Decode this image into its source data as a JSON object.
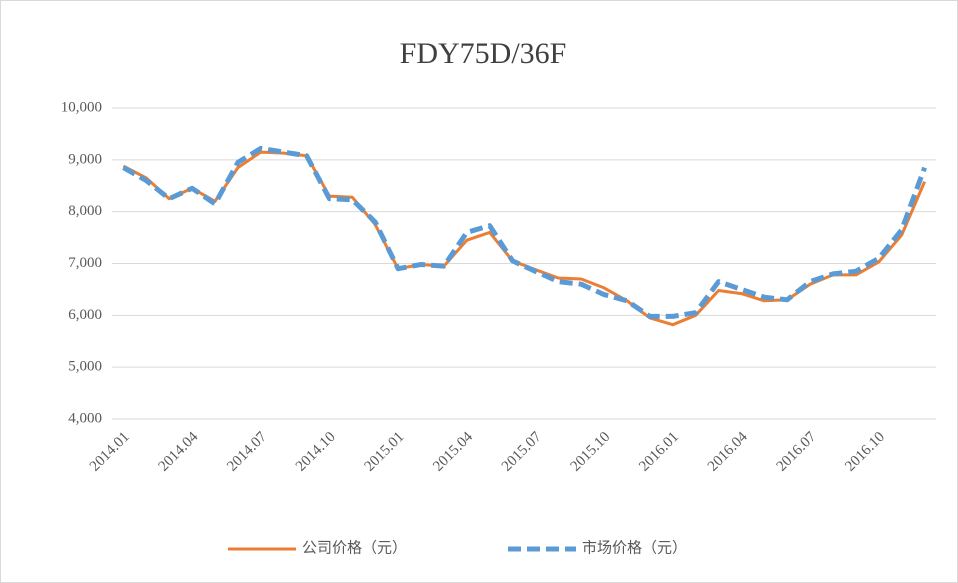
{
  "chart_data": {
    "type": "line",
    "title": "FDY75D/36F",
    "categories": [
      "2014.01",
      null,
      null,
      "2014.04",
      null,
      null,
      "2014.07",
      null,
      null,
      "2014.10",
      null,
      null,
      "2015.01",
      null,
      null,
      "2015.04",
      null,
      null,
      "2015.07",
      null,
      null,
      "2015.10",
      null,
      null,
      "2016.01",
      null,
      null,
      "2016.04",
      null,
      null,
      "2016.07",
      null,
      null,
      "2016.10",
      null,
      null
    ],
    "series": [
      {
        "name": "公司价格（元）",
        "color": "#ed7d31",
        "dashed": false,
        "values": [
          8880,
          8650,
          8250,
          8450,
          8200,
          8850,
          9150,
          9130,
          9080,
          8300,
          8280,
          7750,
          6900,
          6980,
          6950,
          7450,
          7600,
          7050,
          6880,
          6720,
          6700,
          6530,
          6280,
          5950,
          5820,
          6000,
          6480,
          6420,
          6280,
          6300,
          6600,
          6780,
          6780,
          7030,
          7550,
          8580
        ]
      },
      {
        "name": "市场价格（元）",
        "color": "#5b9bd5",
        "dashed": true,
        "values": [
          8850,
          8600,
          8250,
          8450,
          8150,
          8950,
          9220,
          9150,
          9080,
          8250,
          8230,
          7800,
          6900,
          6980,
          6950,
          7600,
          7730,
          7050,
          6850,
          6650,
          6600,
          6400,
          6280,
          5980,
          5980,
          6050,
          6650,
          6500,
          6350,
          6300,
          6650,
          6800,
          6850,
          7100,
          7650,
          8850
        ]
      }
    ],
    "ylim": [
      4000,
      10000
    ],
    "yticks": [
      {
        "value": 4000,
        "label": "4,000"
      },
      {
        "value": 5000,
        "label": "5,000"
      },
      {
        "value": 6000,
        "label": "6,000"
      },
      {
        "value": 7000,
        "label": "7,000"
      },
      {
        "value": 8000,
        "label": "8,000"
      },
      {
        "value": 9000,
        "label": "9,000"
      },
      {
        "value": 10000,
        "label": "10,000"
      }
    ],
    "grid": true,
    "legend": "bottom"
  }
}
